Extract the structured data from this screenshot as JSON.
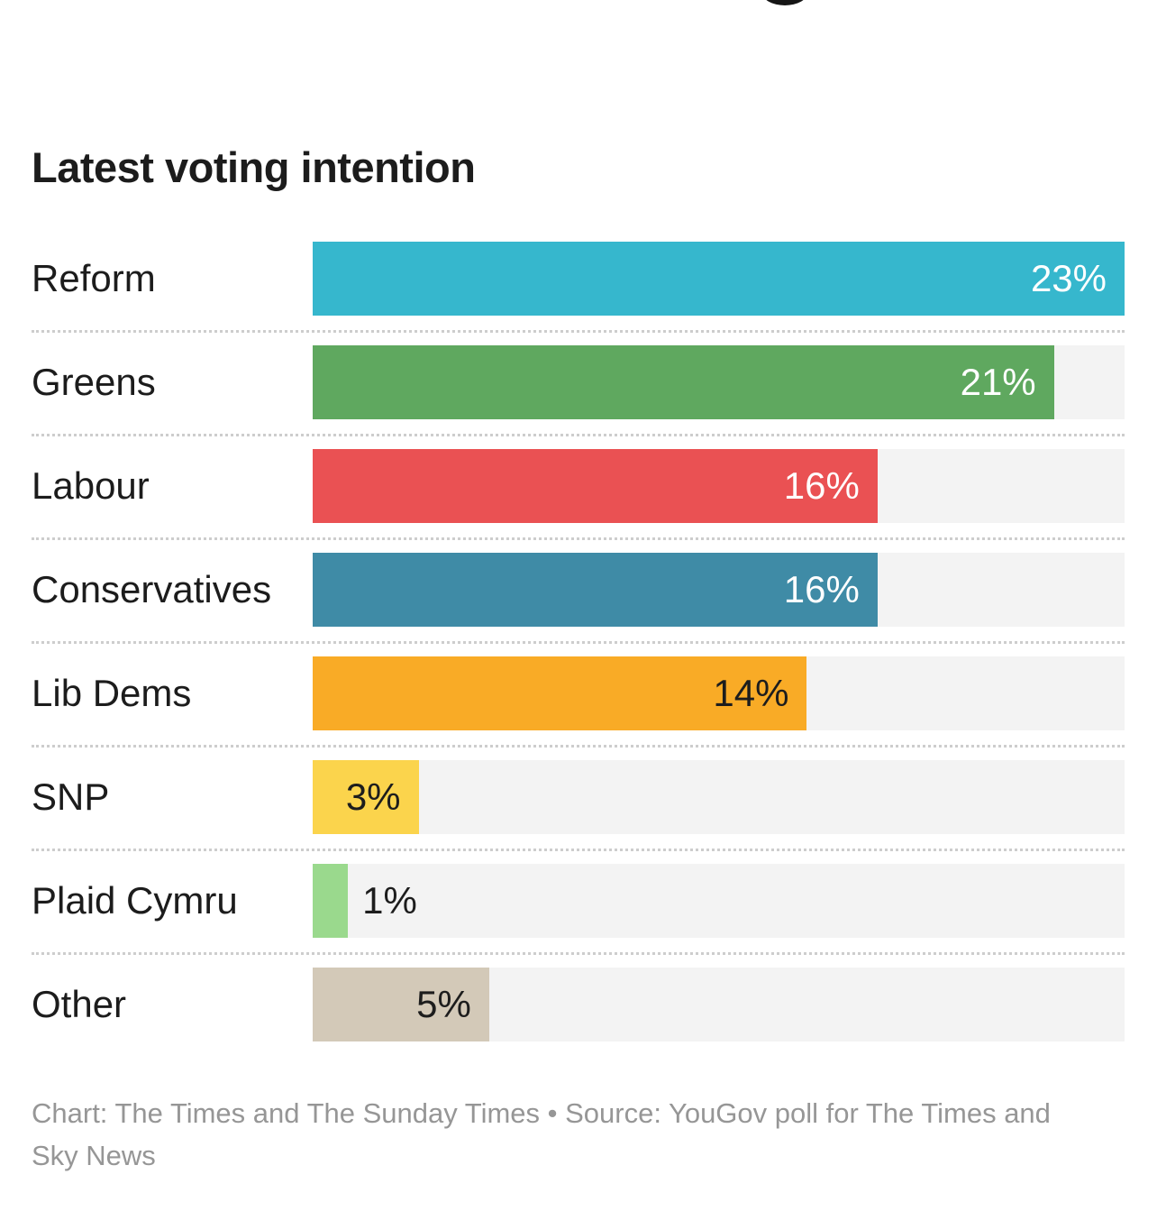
{
  "chart": {
    "title": "Latest voting intention",
    "footer": "Chart: The Times and The Sunday Times • Source: YouGov poll for The Times and Sky News",
    "axis_max": 23,
    "track_color": "#f3f3f3",
    "rows": [
      {
        "label": "Reform",
        "value": 23,
        "display": "23%",
        "color": "#36b7cd",
        "value_color": "#ffffff",
        "value_position": "inside"
      },
      {
        "label": "Greens",
        "value": 21,
        "display": "21%",
        "color": "#5fa85f",
        "value_color": "#ffffff",
        "value_position": "inside"
      },
      {
        "label": "Labour",
        "value": 16,
        "display": "16%",
        "color": "#ea5153",
        "value_color": "#ffffff",
        "value_position": "inside"
      },
      {
        "label": "Conservatives",
        "value": 16,
        "display": "16%",
        "color": "#3f8ba6",
        "value_color": "#ffffff",
        "value_position": "inside"
      },
      {
        "label": "Lib Dems",
        "value": 14,
        "display": "14%",
        "color": "#f9ab26",
        "value_color": "#1d1d1d",
        "value_position": "inside"
      },
      {
        "label": "SNP",
        "value": 3,
        "display": "3%",
        "color": "#fbd44c",
        "value_color": "#1d1d1d",
        "value_position": "inside"
      },
      {
        "label": "Plaid Cymru",
        "value": 1,
        "display": "1%",
        "color": "#9ad98d",
        "value_color": "#1d1d1d",
        "value_position": "outside"
      },
      {
        "label": "Other",
        "value": 5,
        "display": "5%",
        "color": "#d3c9b8",
        "value_color": "#1d1d1d",
        "value_position": "inside"
      }
    ]
  },
  "chart_data": {
    "type": "bar",
    "orientation": "horizontal",
    "title": "Latest voting intention",
    "categories": [
      "Reform",
      "Greens",
      "Labour",
      "Conservatives",
      "Lib Dems",
      "SNP",
      "Plaid Cymru",
      "Other"
    ],
    "values": [
      23,
      21,
      16,
      16,
      14,
      3,
      1,
      5
    ],
    "value_labels": [
      "23%",
      "21%",
      "16%",
      "16%",
      "14%",
      "3%",
      "1%",
      "5%"
    ],
    "bar_colors": [
      "#36b7cd",
      "#5fa85f",
      "#ea5153",
      "#3f8ba6",
      "#f9ab26",
      "#fbd44c",
      "#9ad98d",
      "#d3c9b8"
    ],
    "xlabel": "",
    "ylabel": "",
    "xlim": [
      0,
      23
    ],
    "grid": false,
    "legend": false,
    "annotations": "Chart: The Times and The Sunday Times • Source: YouGov poll for The Times and Sky News"
  }
}
